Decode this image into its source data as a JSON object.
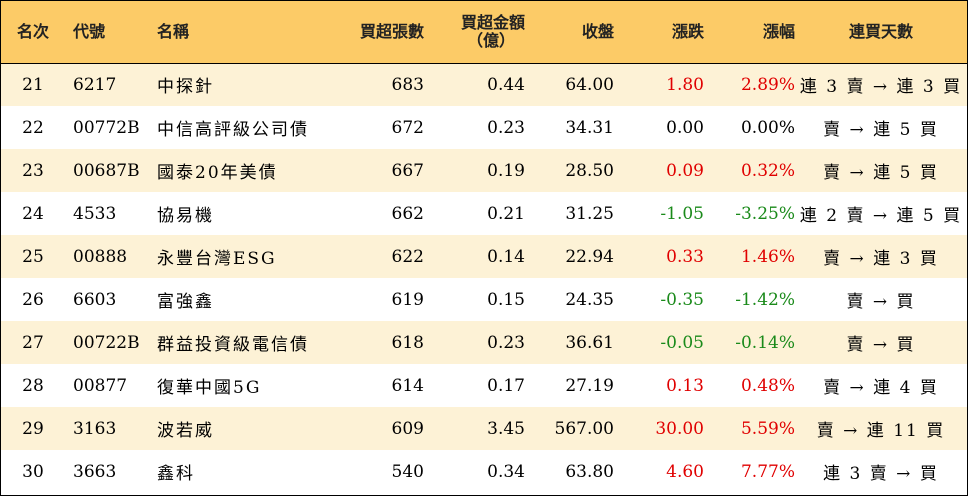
{
  "columns": {
    "rank": "名次",
    "code": "代號",
    "name": "名稱",
    "net_buy_volume": "買超張數",
    "net_buy_amount_line1": "買超金額",
    "net_buy_amount_line2": "（億）",
    "close": "收盤",
    "change": "漲跌",
    "change_pct": "漲幅",
    "consecutive_buy_days": "連買天數"
  },
  "colors": {
    "header_bg": "#fccb67",
    "odd_row_bg": "#fdf2d6",
    "even_row_bg": "#ffffff",
    "up": "#e00000",
    "down": "#1a8a1a"
  },
  "rows": [
    {
      "rank": "21",
      "code": "6217",
      "name": "中探針",
      "volume": "683",
      "amount": "0.44",
      "close": "64.00",
      "change": "1.80",
      "pct": "2.89%",
      "days": "連 3 賣 → 連 3 買",
      "dir": "up"
    },
    {
      "rank": "22",
      "code": "00772B",
      "name": "中信高評級公司債",
      "volume": "672",
      "amount": "0.23",
      "close": "34.31",
      "change": "0.00",
      "pct": "0.00%",
      "days": "賣 → 連 5 買",
      "dir": "flat"
    },
    {
      "rank": "23",
      "code": "00687B",
      "name": "國泰20年美債",
      "volume": "667",
      "amount": "0.19",
      "close": "28.50",
      "change": "0.09",
      "pct": "0.32%",
      "days": "賣 → 連 5 買",
      "dir": "up"
    },
    {
      "rank": "24",
      "code": "4533",
      "name": "協易機",
      "volume": "662",
      "amount": "0.21",
      "close": "31.25",
      "change": "-1.05",
      "pct": "-3.25%",
      "days": "連 2 賣 → 連 5 買",
      "dir": "down"
    },
    {
      "rank": "25",
      "code": "00888",
      "name": "永豐台灣ESG",
      "volume": "622",
      "amount": "0.14",
      "close": "22.94",
      "change": "0.33",
      "pct": "1.46%",
      "days": "賣 → 連 3 買",
      "dir": "up"
    },
    {
      "rank": "26",
      "code": "6603",
      "name": "富強鑫",
      "volume": "619",
      "amount": "0.15",
      "close": "24.35",
      "change": "-0.35",
      "pct": "-1.42%",
      "days": "賣 → 買",
      "dir": "down"
    },
    {
      "rank": "27",
      "code": "00722B",
      "name": "群益投資級電信債",
      "volume": "618",
      "amount": "0.23",
      "close": "36.61",
      "change": "-0.05",
      "pct": "-0.14%",
      "days": "賣 → 買",
      "dir": "down"
    },
    {
      "rank": "28",
      "code": "00877",
      "name": "復華中國5G",
      "volume": "614",
      "amount": "0.17",
      "close": "27.19",
      "change": "0.13",
      "pct": "0.48%",
      "days": "賣 → 連 4 買",
      "dir": "up"
    },
    {
      "rank": "29",
      "code": "3163",
      "name": "波若威",
      "volume": "609",
      "amount": "3.45",
      "close": "567.00",
      "change": "30.00",
      "pct": "5.59%",
      "days": "賣 → 連 11 買",
      "dir": "up"
    },
    {
      "rank": "30",
      "code": "3663",
      "name": "鑫科",
      "volume": "540",
      "amount": "0.34",
      "close": "63.80",
      "change": "4.60",
      "pct": "7.77%",
      "days": "連 3 賣 → 買",
      "dir": "up"
    }
  ]
}
